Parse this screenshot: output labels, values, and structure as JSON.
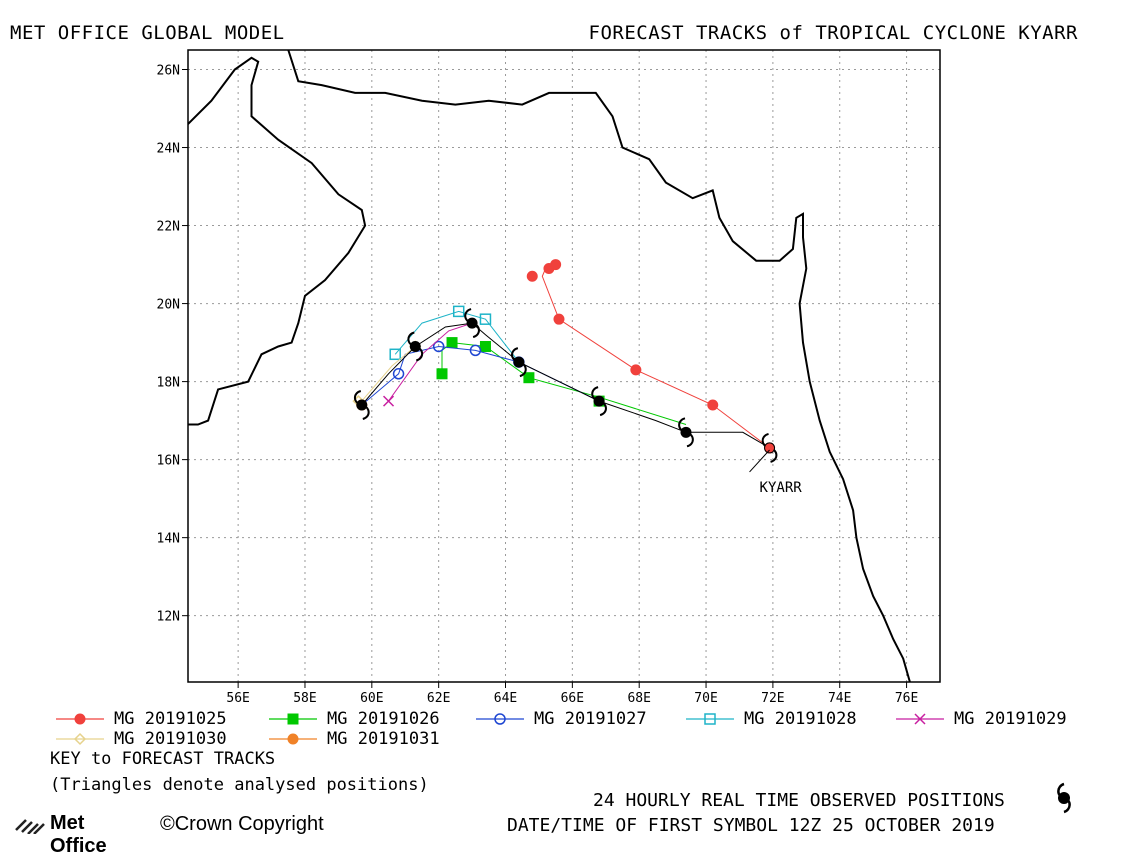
{
  "header": {
    "left_title": "MET OFFICE GLOBAL MODEL",
    "right_title": "FORECAST TRACKS of TROPICAL CYCLONE KYARR"
  },
  "map": {
    "lon_range": [
      54.5,
      77
    ],
    "lat_range": [
      10.3,
      26.5
    ],
    "lon_ticks": [
      "56E",
      "58E",
      "60E",
      "62E",
      "64E",
      "66E",
      "68E",
      "70E",
      "72E",
      "74E",
      "76E"
    ],
    "lon_tick_values": [
      56,
      58,
      60,
      62,
      64,
      66,
      68,
      70,
      72,
      74,
      76
    ],
    "lat_ticks": [
      "12N",
      "14N",
      "16N",
      "18N",
      "20N",
      "22N",
      "24N",
      "26N"
    ],
    "lat_tick_values": [
      12,
      14,
      16,
      18,
      20,
      22,
      24,
      26
    ],
    "grid": true,
    "storm_label": "KYARR",
    "coastline": [
      [
        54.5,
        24.6
      ],
      [
        55.2,
        25.2
      ],
      [
        55.9,
        26.0
      ],
      [
        56.4,
        26.3
      ],
      [
        56.6,
        26.2
      ],
      [
        56.4,
        25.6
      ],
      [
        56.4,
        24.8
      ],
      [
        57.2,
        24.2
      ],
      [
        58.2,
        23.6
      ],
      [
        59.0,
        22.8
      ],
      [
        59.7,
        22.4
      ],
      [
        59.8,
        22.0
      ],
      [
        59.3,
        21.3
      ],
      [
        58.6,
        20.6
      ],
      [
        58.0,
        20.2
      ],
      [
        57.8,
        19.5
      ],
      [
        57.6,
        19.0
      ],
      [
        57.2,
        18.9
      ],
      [
        56.7,
        18.7
      ],
      [
        56.3,
        18.0
      ],
      [
        55.4,
        17.8
      ],
      [
        55.1,
        17.0
      ],
      [
        54.8,
        16.9
      ],
      [
        54.5,
        16.9
      ]
    ],
    "coastline2": [
      [
        57.5,
        26.5
      ],
      [
        57.8,
        25.7
      ],
      [
        58.5,
        25.6
      ],
      [
        59.5,
        25.4
      ],
      [
        60.4,
        25.4
      ],
      [
        61.5,
        25.2
      ],
      [
        62.5,
        25.1
      ],
      [
        63.5,
        25.2
      ],
      [
        64.5,
        25.1
      ],
      [
        65.3,
        25.4
      ],
      [
        66.1,
        25.4
      ],
      [
        66.7,
        25.4
      ],
      [
        67.2,
        24.8
      ],
      [
        67.5,
        24.0
      ],
      [
        68.3,
        23.7
      ],
      [
        68.8,
        23.1
      ],
      [
        69.6,
        22.7
      ],
      [
        70.2,
        22.9
      ],
      [
        70.4,
        22.2
      ],
      [
        70.8,
        21.6
      ],
      [
        71.5,
        21.1
      ],
      [
        72.2,
        21.1
      ],
      [
        72.6,
        21.4
      ],
      [
        72.7,
        22.2
      ],
      [
        72.9,
        22.3
      ],
      [
        72.9,
        21.7
      ],
      [
        73.0,
        20.9
      ],
      [
        72.8,
        20.0
      ],
      [
        72.9,
        19.0
      ],
      [
        73.1,
        18.0
      ],
      [
        73.4,
        17.0
      ],
      [
        73.7,
        16.2
      ],
      [
        74.1,
        15.5
      ],
      [
        74.4,
        14.7
      ],
      [
        74.5,
        14.0
      ],
      [
        74.7,
        13.2
      ],
      [
        75.0,
        12.5
      ],
      [
        75.3,
        12.0
      ],
      [
        75.6,
        11.4
      ],
      [
        75.9,
        10.9
      ],
      [
        76.1,
        10.3
      ]
    ],
    "fixed_points": [
      [
        71.9,
        16.3
      ],
      [
        69.5,
        16.7
      ],
      [
        66.8,
        17.5
      ],
      [
        64.4,
        18.5
      ],
      [
        63.0,
        19.5
      ],
      [
        61.3,
        18.9
      ],
      [
        59.7,
        17.4
      ]
    ],
    "symbol_points": [
      [
        71.9,
        16.3
      ],
      [
        69.4,
        16.7
      ],
      [
        66.8,
        17.5
      ],
      [
        64.4,
        18.5
      ],
      [
        63.0,
        19.5
      ],
      [
        61.3,
        18.9
      ],
      [
        59.7,
        17.4
      ]
    ]
  },
  "tracks": [
    {
      "name": "MG 20191025",
      "color": "#f0413c",
      "marker": "circle",
      "points": [
        [
          71.9,
          16.3
        ],
        [
          70.2,
          17.4
        ],
        [
          67.9,
          18.3
        ],
        [
          65.6,
          19.6
        ],
        [
          65.1,
          20.7
        ],
        [
          65.2,
          20.9
        ],
        [
          65.4,
          21.0
        ]
      ],
      "markers": [
        [
          71.9,
          16.3
        ],
        [
          70.2,
          17.4
        ],
        [
          67.9,
          18.3
        ],
        [
          65.6,
          19.6
        ],
        [
          64.8,
          20.7
        ],
        [
          65.3,
          20.9
        ],
        [
          65.5,
          21.0
        ]
      ]
    },
    {
      "name": "MG 20191026",
      "color": "#00c800",
      "marker": "square",
      "points": [
        [
          69.4,
          16.9
        ],
        [
          66.8,
          17.6
        ],
        [
          64.7,
          18.1
        ],
        [
          63.4,
          18.9
        ],
        [
          62.4,
          19.0
        ],
        [
          62.1,
          18.8
        ],
        [
          62.1,
          18.2
        ]
      ],
      "markers": [
        [
          66.8,
          17.5
        ],
        [
          64.7,
          18.1
        ],
        [
          63.4,
          18.9
        ],
        [
          62.4,
          19.0
        ],
        [
          62.1,
          18.2
        ]
      ]
    },
    {
      "name": "MG 20191027",
      "color": "#1e46d2",
      "marker": "circle-open",
      "points": [
        [
          66.8,
          17.5
        ],
        [
          64.4,
          18.5
        ],
        [
          63.1,
          18.8
        ],
        [
          62.0,
          18.9
        ],
        [
          61.0,
          18.7
        ],
        [
          60.8,
          18.2
        ],
        [
          59.7,
          17.4
        ]
      ],
      "markers": [
        [
          64.4,
          18.5
        ],
        [
          63.1,
          18.8
        ],
        [
          62.0,
          18.9
        ],
        [
          60.8,
          18.2
        ]
      ]
    },
    {
      "name": "MG 20191028",
      "color": "#1eb4c8",
      "marker": "square-open",
      "points": [
        [
          64.4,
          18.5
        ],
        [
          63.4,
          19.6
        ],
        [
          62.6,
          19.8
        ],
        [
          61.5,
          19.5
        ],
        [
          60.7,
          18.7
        ]
      ],
      "markers": [
        [
          63.4,
          19.6
        ],
        [
          62.6,
          19.8
        ],
        [
          60.7,
          18.7
        ]
      ]
    },
    {
      "name": "MG 20191029",
      "color": "#c81ea0",
      "marker": "x",
      "points": [
        [
          63.0,
          19.5
        ],
        [
          62.3,
          19.3
        ],
        [
          61.5,
          18.7
        ],
        [
          60.5,
          17.5
        ]
      ],
      "markers": [
        [
          60.5,
          17.5
        ]
      ]
    },
    {
      "name": "MG 20191030",
      "color": "#e6d28c",
      "marker": "diamond",
      "points": [
        [
          61.3,
          18.9
        ],
        [
          60.6,
          18.4
        ],
        [
          59.7,
          17.5
        ]
      ],
      "markers": [
        [
          61.3,
          18.9
        ],
        [
          59.6,
          17.5
        ]
      ]
    },
    {
      "name": "MG 20191031",
      "color": "#f08228",
      "marker": "circle",
      "points": [
        [
          59.7,
          17.4
        ]
      ],
      "markers": [
        [
          59.7,
          17.4
        ]
      ]
    }
  ],
  "observed_track": {
    "color": "#000000",
    "points": [
      [
        71.9,
        16.3
      ],
      [
        71.1,
        16.7
      ],
      [
        70.3,
        16.7
      ],
      [
        69.4,
        16.7
      ],
      [
        68.5,
        17.0
      ],
      [
        66.8,
        17.5
      ],
      [
        65.6,
        18.0
      ],
      [
        64.4,
        18.5
      ],
      [
        63.4,
        19.2
      ],
      [
        63.0,
        19.5
      ],
      [
        62.2,
        19.4
      ],
      [
        61.3,
        18.9
      ],
      [
        60.5,
        18.2
      ],
      [
        59.7,
        17.4
      ]
    ]
  },
  "legend": {
    "entries": [
      {
        "label": "MG 20191025",
        "color": "#f0413c",
        "marker": "circle"
      },
      {
        "label": "MG 20191026",
        "color": "#00c800",
        "marker": "square"
      },
      {
        "label": "MG 20191027",
        "color": "#1e46d2",
        "marker": "circle-open"
      },
      {
        "label": "MG 20191028",
        "color": "#1eb4c8",
        "marker": "square-open"
      },
      {
        "label": "MG 20191029",
        "color": "#c81ea0",
        "marker": "x"
      },
      {
        "label": "MG 20191030",
        "color": "#e6d28c",
        "marker": "diamond"
      },
      {
        "label": "MG 20191031",
        "color": "#f08228",
        "marker": "circle"
      }
    ],
    "key_title": "KEY to FORECAST TRACKS",
    "key_note": "(Triangles denote analysed positions)"
  },
  "footer": {
    "observed_note": "24 HOURLY REAL TIME OBSERVED POSITIONS",
    "datetime_note": "DATE/TIME OF FIRST SYMBOL 12Z 25 OCTOBER 2019",
    "logo_text": "Met Office",
    "copyright": "©Crown Copyright"
  }
}
